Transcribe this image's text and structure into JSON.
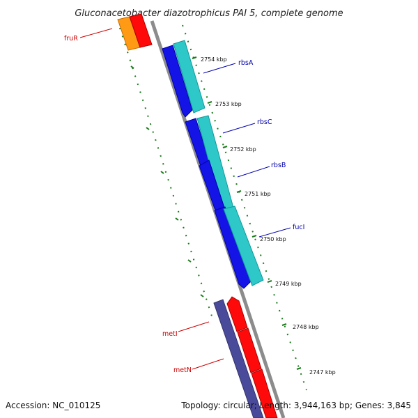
{
  "title": "Gluconacetobacter diazotrophicus PAI 5, complete genome",
  "footer": {
    "accession": "Accession: NC_010125",
    "summary": "Topology: circular; Length: 3,944,163 bp; Genes: 3,845"
  },
  "ticks": [
    {
      "label": "2754 kbp"
    },
    {
      "label": "2753 kbp"
    },
    {
      "label": "2752 kbp"
    },
    {
      "label": "2751 kbp"
    },
    {
      "label": "2750 kbp"
    },
    {
      "label": "2749 kbp"
    },
    {
      "label": "2748 kbp"
    },
    {
      "label": "2747 kbp"
    }
  ],
  "genes": {
    "fruR": {
      "label": "fruR",
      "color": "#cc0000"
    },
    "rbsA": {
      "label": "rbsA",
      "color": "#0000aa"
    },
    "rbsC": {
      "label": "rbsC",
      "color": "#0000aa"
    },
    "rbsB": {
      "label": "rbsB",
      "color": "#0000aa"
    },
    "fucI": {
      "label": "fucI",
      "color": "#0000aa"
    },
    "metI": {
      "label": "metI",
      "color": "#cc0000"
    },
    "metN": {
      "label": "metN",
      "color": "#cc0000"
    }
  },
  "colors": {
    "backbone": "#8c8c8c",
    "tick_dots": "#1a7a1a",
    "blue_cds": "#1414e6",
    "cyan_cds": "#2ec8c8",
    "red_cds": "#ff0a0a",
    "orange_cds": "#ff9a14",
    "purple_cds": "#4a4a9a"
  }
}
